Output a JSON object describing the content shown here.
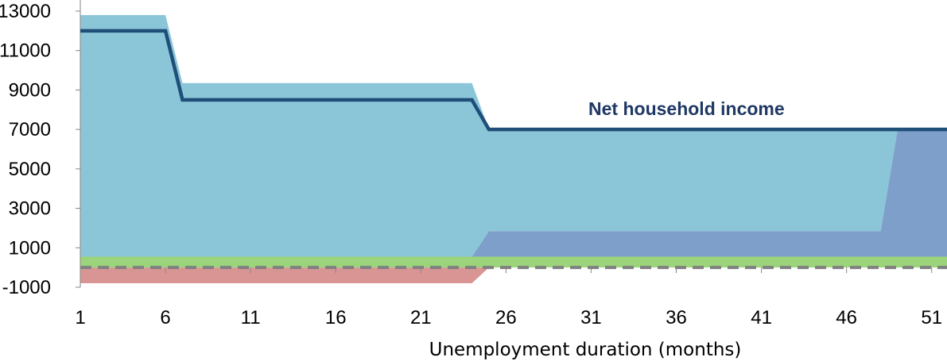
{
  "chart_data": {
    "type": "area",
    "xlabel": "Unemployment duration (months)",
    "ylabel": "",
    "xlim": [
      1,
      51.9
    ],
    "ylim": [
      -1000,
      13000
    ],
    "x_ticks": [
      "1",
      "6",
      "11",
      "16",
      "21",
      "26",
      "31",
      "36",
      "41",
      "46",
      "51"
    ],
    "y_ticks": [
      "-1000",
      "1000",
      "3000",
      "5000",
      "7000",
      "9000",
      "11000",
      "13000"
    ],
    "grid": false,
    "areas": [
      {
        "color": "#D99594",
        "points": [
          [
            1,
            0
          ],
          [
            24,
            0
          ],
          [
            25,
            0
          ],
          [
            51.9,
            0
          ],
          [
            51.9,
            0
          ],
          [
            25,
            0
          ],
          [
            24,
            -800
          ],
          [
            1,
            -800
          ]
        ]
      },
      {
        "color": "#9BD47A",
        "points": [
          [
            1,
            0
          ],
          [
            51.9,
            0
          ],
          [
            51.9,
            550
          ],
          [
            1,
            550
          ]
        ]
      },
      {
        "color": "#7F9FCB",
        "points": [
          [
            24,
            550
          ],
          [
            51.9,
            550
          ],
          [
            51.9,
            7000
          ],
          [
            49,
            7000
          ],
          [
            48,
            1850
          ],
          [
            25,
            1850
          ],
          [
            24,
            550
          ]
        ]
      },
      {
        "color": "#8BC6D8",
        "points": [
          [
            1,
            550
          ],
          [
            24,
            550
          ],
          [
            25,
            1850
          ],
          [
            48,
            1850
          ],
          [
            49,
            7000
          ],
          [
            25,
            7000
          ],
          [
            24,
            9350
          ],
          [
            7,
            9350
          ],
          [
            6,
            12800
          ],
          [
            1,
            12800
          ]
        ]
      }
    ],
    "series": [
      {
        "name": "Net household income",
        "color": "#1F4E79",
        "x": [
          1,
          6,
          7,
          24,
          25,
          51.9
        ],
        "y": [
          12000,
          12000,
          8500,
          8500,
          7000,
          7000
        ]
      }
    ],
    "zero_line": {
      "y": 0,
      "color": "#808080",
      "style": "dashed"
    }
  }
}
